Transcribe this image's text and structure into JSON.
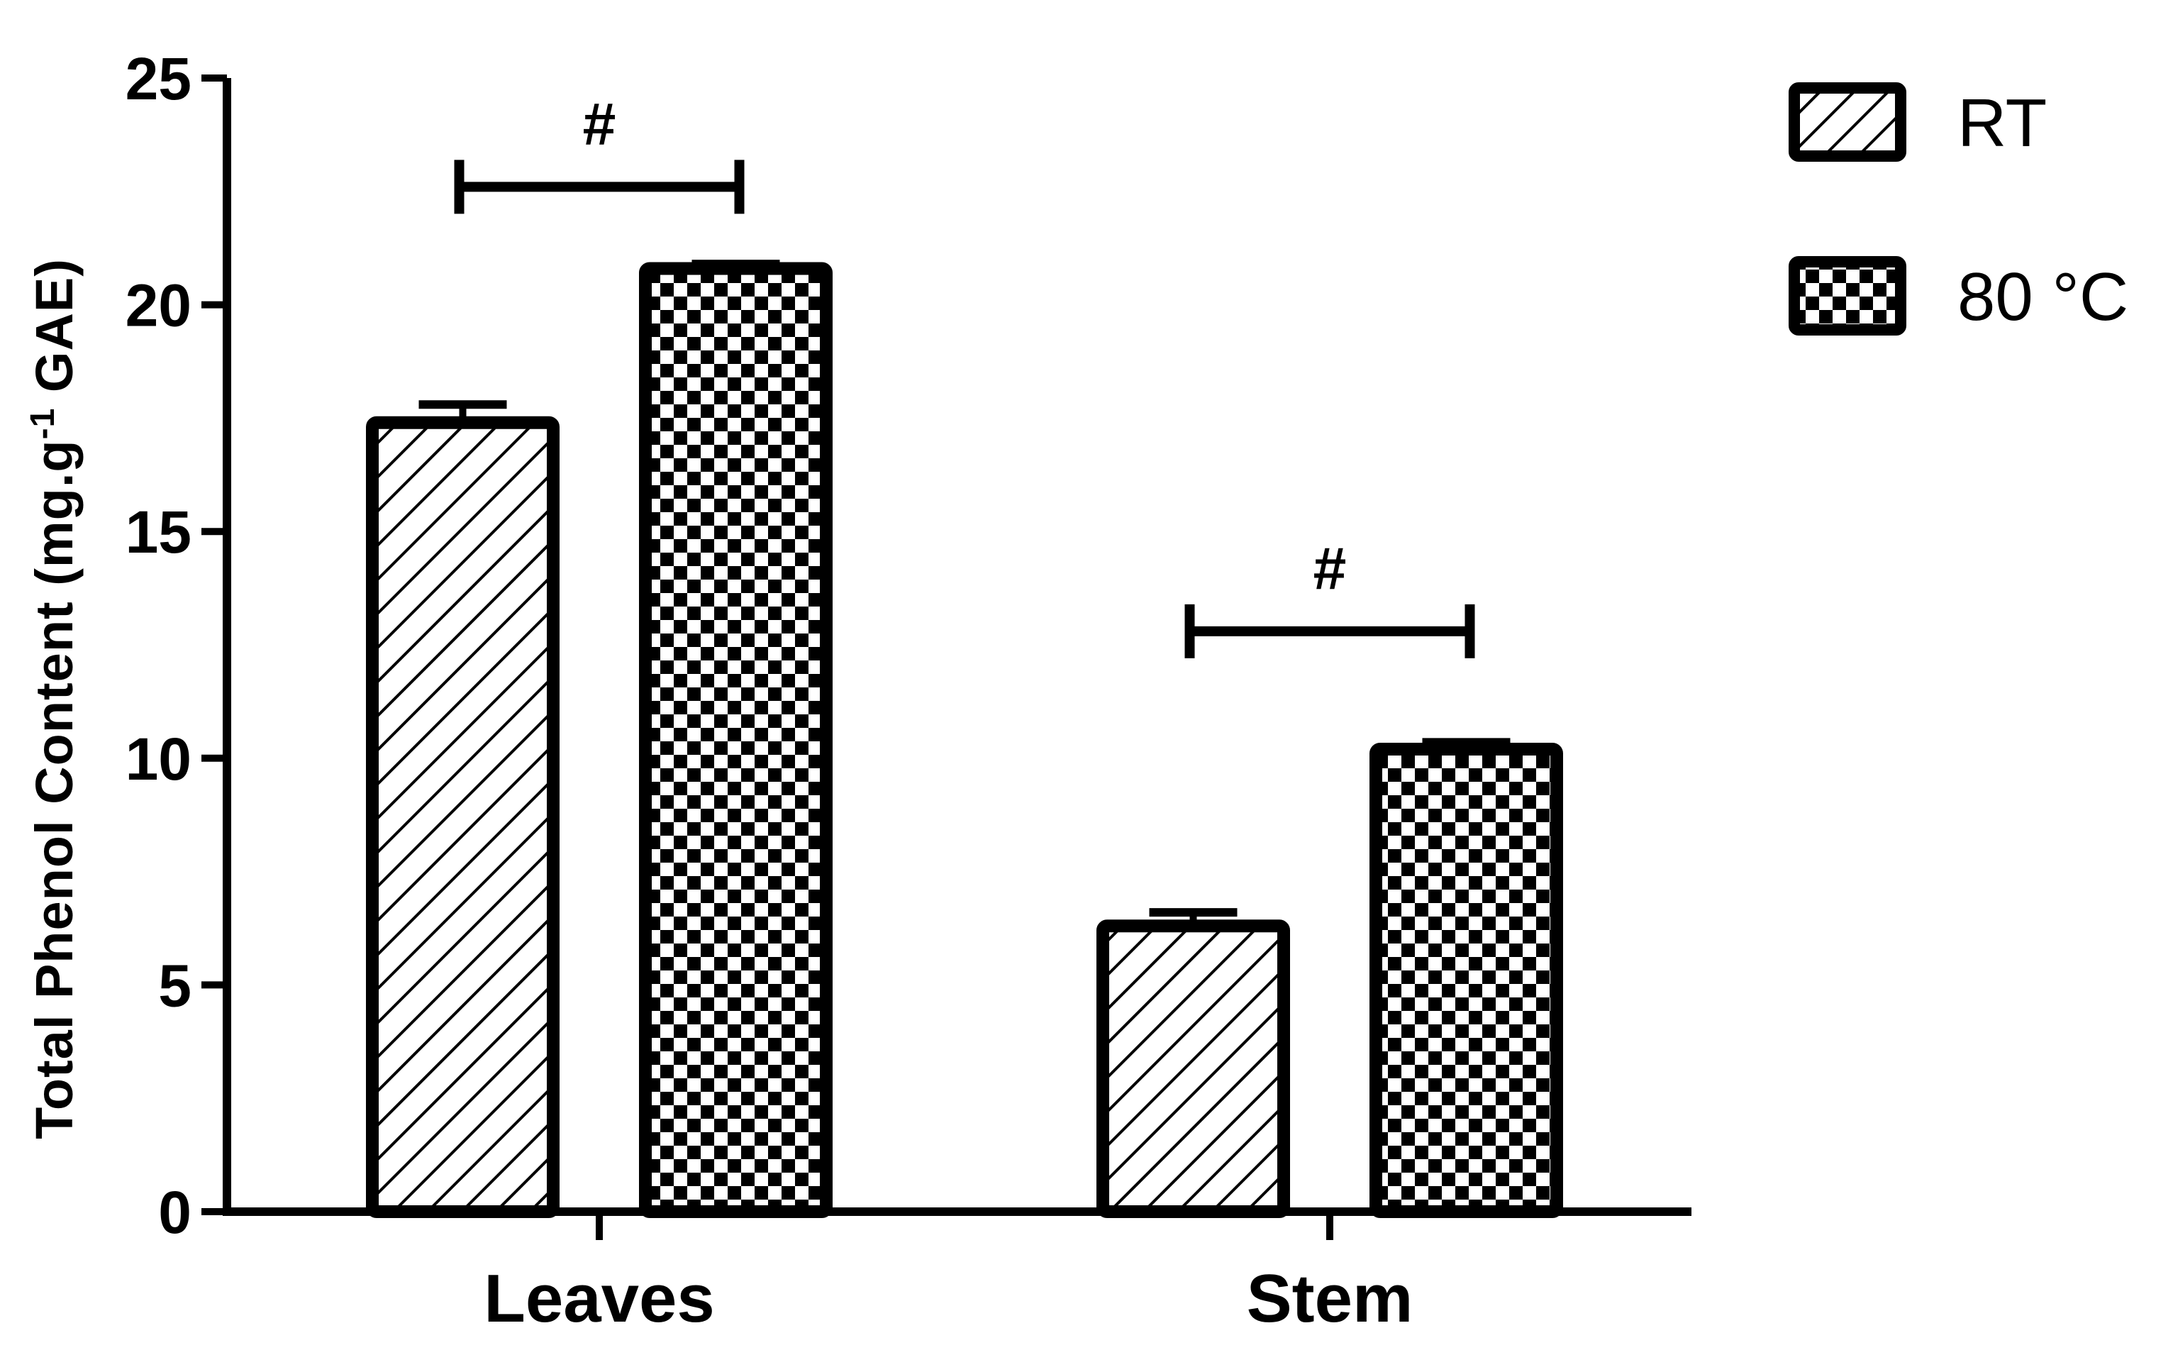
{
  "chart_data": {
    "type": "bar",
    "title": "",
    "xlabel": "",
    "ylabel": "Total Phenol Content (mg.g-1 GAE)",
    "ylabel_parts": {
      "pre": "Total Phenol Content (mg.g",
      "sup": "-1",
      "post": " GAE)"
    },
    "ylim": [
      0,
      25
    ],
    "yticks": [
      "0",
      "5",
      "10",
      "15",
      "20",
      "25"
    ],
    "categories": [
      "Leaves",
      "Stem"
    ],
    "series": [
      {
        "name": "RT",
        "pattern": "diagonal-hatch",
        "values": [
          17.4,
          6.3
        ],
        "errors": [
          0.4,
          0.3
        ]
      },
      {
        "name": "80 °C",
        "pattern": "checkerboard",
        "values": [
          20.8,
          10.2
        ],
        "errors": [
          0.1,
          0.15
        ]
      }
    ],
    "significance": [
      {
        "category": "Leaves",
        "label": "#",
        "level": 22.6
      },
      {
        "category": "Stem",
        "label": "#",
        "level": 12.8
      }
    ],
    "legend_position": "top-right",
    "grid": false,
    "colors": {
      "bar_stroke": "#000000",
      "fill_bg": "#ffffff",
      "pattern": "#000000"
    }
  }
}
